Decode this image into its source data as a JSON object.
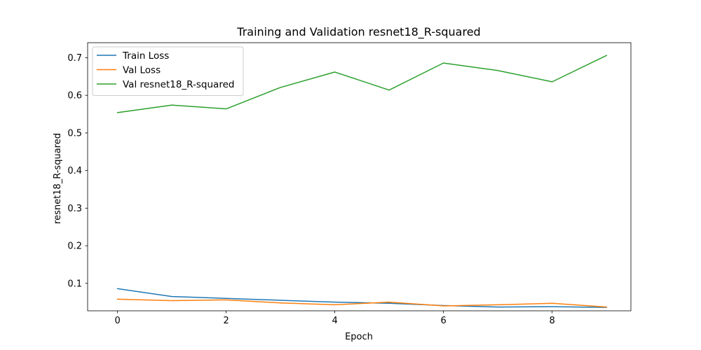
{
  "chart_data": {
    "type": "line",
    "title": "Training and Validation resnet18_R-squared",
    "xlabel": "Epoch",
    "ylabel": "resnet18_R-squared",
    "xlim": [
      -0.55,
      9.45
    ],
    "ylim": [
      0.027,
      0.74
    ],
    "x_ticks": [
      0,
      2,
      4,
      6,
      8
    ],
    "y_ticks": [
      0.1,
      0.2,
      0.3,
      0.4,
      0.5,
      0.6,
      0.7
    ],
    "x_tick_labels": [
      "0",
      "2",
      "4",
      "6",
      "8"
    ],
    "y_tick_labels": [
      "0.1",
      "0.2",
      "0.3",
      "0.4",
      "0.5",
      "0.6",
      "0.7"
    ],
    "grid": false,
    "legend_position": "top-left",
    "x": [
      0,
      1,
      2,
      3,
      4,
      5,
      6,
      7,
      8,
      9
    ],
    "series": [
      {
        "name": "Train Loss",
        "color": "#1f77b4",
        "values": [
          0.086,
          0.065,
          0.06,
          0.055,
          0.05,
          0.047,
          0.041,
          0.037,
          0.038,
          0.036
        ]
      },
      {
        "name": "Val Loss",
        "color": "#ff7f0e",
        "values": [
          0.058,
          0.054,
          0.056,
          0.048,
          0.043,
          0.05,
          0.04,
          0.043,
          0.047,
          0.037
        ]
      },
      {
        "name": "Val resnet18_R-squared",
        "color": "#2ca02c",
        "values": [
          0.554,
          0.574,
          0.564,
          0.621,
          0.662,
          0.614,
          0.686,
          0.666,
          0.636,
          0.706
        ]
      }
    ]
  }
}
